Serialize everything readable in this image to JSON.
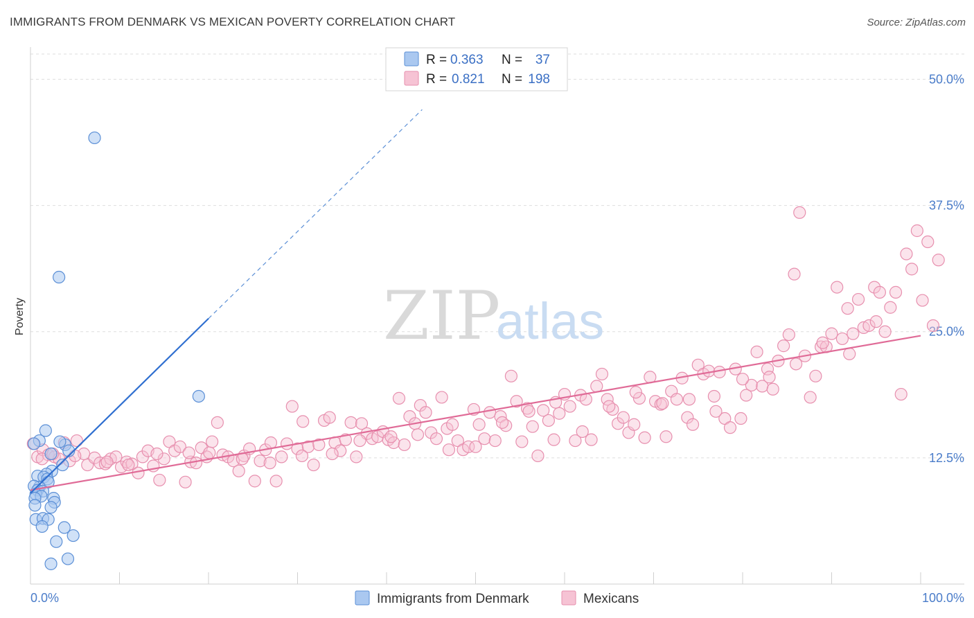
{
  "title": "IMMIGRANTS FROM DENMARK VS MEXICAN POVERTY CORRELATION CHART",
  "source": "Source: ZipAtlas.com",
  "watermark": {
    "zip": "ZIP",
    "atlas": "atlas"
  },
  "colors": {
    "denmark_fill": "#aac8f0",
    "denmark_stroke": "#5b8fd6",
    "denmark_line": "#2f6fd0",
    "mexican_fill": "#f6c3d4",
    "mexican_stroke": "#e78fae",
    "mexican_line": "#e06b97",
    "grid": "#dddddd",
    "tick_label": "#4a7cc9"
  },
  "legend": {
    "rows": [
      {
        "r_label": "R =",
        "r_value": "0.363",
        "n_label": "N =",
        "n_value": "37"
      },
      {
        "r_label": "R =",
        "r_value": "0.821",
        "n_label": "N =",
        "n_value": "198"
      }
    ]
  },
  "chart_data": {
    "type": "scatter",
    "title": "IMMIGRANTS FROM DENMARK VS MEXICAN POVERTY CORRELATION CHART",
    "xlabel": "",
    "ylabel": "Poverty",
    "xlim": [
      0,
      100
    ],
    "ylim": [
      0,
      52.5
    ],
    "x_tick_labels": [
      "0.0%",
      "100.0%"
    ],
    "y_ticks": [
      12.5,
      25.0,
      37.5,
      50.0
    ],
    "y_tick_labels": [
      "12.5%",
      "25.0%",
      "37.5%",
      "50.0%"
    ],
    "grid": true,
    "legend_position": "top-center",
    "series": [
      {
        "name": "Immigrants from Denmark",
        "r": 0.363,
        "n": 37,
        "trend": {
          "x": [
            0.0,
            20.0
          ],
          "y": [
            9.0,
            26.3
          ]
        },
        "trend_extension": {
          "x": [
            20.0,
            44.0
          ],
          "y": [
            26.3,
            47.0
          ]
        },
        "points": [
          [
            7.2,
            44.2
          ],
          [
            3.2,
            30.4
          ],
          [
            18.9,
            18.6
          ],
          [
            1.7,
            15.2
          ],
          [
            1.0,
            14.2
          ],
          [
            0.4,
            13.9
          ],
          [
            3.9,
            13.8
          ],
          [
            3.3,
            14.1
          ],
          [
            4.3,
            13.2
          ],
          [
            3.6,
            11.8
          ],
          [
            2.3,
            12.9
          ],
          [
            2.4,
            11.2
          ],
          [
            1.8,
            10.9
          ],
          [
            0.8,
            10.7
          ],
          [
            1.5,
            10.6
          ],
          [
            1.9,
            10.4
          ],
          [
            2.0,
            10.1
          ],
          [
            1.0,
            9.6
          ],
          [
            0.4,
            9.7
          ],
          [
            0.8,
            9.3
          ],
          [
            1.4,
            9.2
          ],
          [
            0.6,
            8.9
          ],
          [
            1.2,
            8.7
          ],
          [
            0.5,
            8.5
          ],
          [
            2.6,
            8.5
          ],
          [
            2.7,
            8.1
          ],
          [
            2.3,
            7.6
          ],
          [
            0.5,
            7.8
          ],
          [
            0.6,
            6.4
          ],
          [
            1.4,
            6.5
          ],
          [
            2.0,
            6.4
          ],
          [
            1.3,
            5.7
          ],
          [
            3.8,
            5.6
          ],
          [
            4.8,
            4.8
          ],
          [
            2.9,
            4.2
          ],
          [
            4.2,
            2.5
          ],
          [
            2.3,
            2.0
          ]
        ]
      },
      {
        "name": "Mexicans",
        "r": 0.821,
        "n": 198,
        "trend": {
          "x": [
            0.0,
            100.0
          ],
          "y": [
            9.3,
            24.6
          ]
        },
        "points": [
          [
            0.3,
            13.9
          ],
          [
            0.8,
            12.6
          ],
          [
            1.4,
            13.3
          ],
          [
            2.0,
            12.8
          ],
          [
            2.7,
            12.6
          ],
          [
            3.2,
            12.4
          ],
          [
            3.8,
            14.0
          ],
          [
            4.4,
            12.2
          ],
          [
            5.2,
            14.2
          ],
          [
            6.0,
            12.9
          ],
          [
            6.4,
            11.8
          ],
          [
            7.2,
            12.5
          ],
          [
            7.8,
            12.0
          ],
          [
            8.4,
            11.9
          ],
          [
            9.0,
            12.4
          ],
          [
            9.6,
            12.6
          ],
          [
            10.2,
            11.6
          ],
          [
            10.8,
            12.1
          ],
          [
            11.4,
            11.9
          ],
          [
            12.1,
            11.0
          ],
          [
            12.6,
            12.6
          ],
          [
            13.2,
            13.2
          ],
          [
            13.8,
            11.7
          ],
          [
            14.5,
            10.3
          ],
          [
            15.0,
            12.4
          ],
          [
            15.6,
            14.1
          ],
          [
            16.2,
            13.2
          ],
          [
            16.8,
            13.6
          ],
          [
            17.4,
            10.1
          ],
          [
            18.0,
            12.1
          ],
          [
            18.6,
            12.0
          ],
          [
            19.2,
            13.5
          ],
          [
            19.8,
            12.6
          ],
          [
            20.4,
            14.1
          ],
          [
            21.0,
            16.0
          ],
          [
            21.6,
            12.8
          ],
          [
            22.2,
            12.6
          ],
          [
            22.8,
            12.2
          ],
          [
            23.4,
            11.2
          ],
          [
            24.0,
            12.7
          ],
          [
            24.6,
            13.4
          ],
          [
            25.2,
            10.2
          ],
          [
            25.8,
            12.2
          ],
          [
            26.4,
            13.3
          ],
          [
            27.0,
            14.0
          ],
          [
            27.6,
            10.2
          ],
          [
            28.2,
            12.6
          ],
          [
            28.8,
            13.9
          ],
          [
            29.4,
            17.6
          ],
          [
            30.0,
            13.4
          ],
          [
            30.6,
            16.1
          ],
          [
            31.2,
            13.6
          ],
          [
            31.8,
            11.8
          ],
          [
            32.4,
            13.8
          ],
          [
            33.0,
            16.2
          ],
          [
            33.6,
            16.5
          ],
          [
            34.2,
            14.0
          ],
          [
            34.8,
            13.2
          ],
          [
            35.4,
            14.3
          ],
          [
            36.0,
            16.0
          ],
          [
            36.6,
            12.6
          ],
          [
            37.2,
            15.9
          ],
          [
            37.8,
            14.9
          ],
          [
            38.4,
            14.4
          ],
          [
            39.0,
            14.6
          ],
          [
            39.6,
            15.1
          ],
          [
            40.2,
            14.3
          ],
          [
            40.8,
            14.0
          ],
          [
            41.4,
            18.4
          ],
          [
            42.0,
            13.8
          ],
          [
            42.6,
            16.6
          ],
          [
            43.2,
            15.9
          ],
          [
            43.8,
            17.7
          ],
          [
            44.4,
            17.0
          ],
          [
            45.0,
            15.0
          ],
          [
            45.6,
            14.4
          ],
          [
            46.2,
            18.5
          ],
          [
            46.8,
            15.4
          ],
          [
            47.4,
            15.8
          ],
          [
            48.0,
            14.2
          ],
          [
            48.6,
            13.3
          ],
          [
            49.2,
            13.6
          ],
          [
            49.8,
            17.3
          ],
          [
            50.4,
            15.8
          ],
          [
            51.0,
            14.4
          ],
          [
            51.6,
            17.0
          ],
          [
            52.2,
            14.2
          ],
          [
            52.8,
            16.6
          ],
          [
            53.4,
            15.7
          ],
          [
            54.0,
            20.6
          ],
          [
            54.6,
            18.1
          ],
          [
            55.2,
            14.1
          ],
          [
            55.8,
            17.4
          ],
          [
            56.4,
            15.6
          ],
          [
            57.0,
            12.7
          ],
          [
            57.6,
            17.2
          ],
          [
            58.2,
            16.2
          ],
          [
            58.8,
            14.3
          ],
          [
            59.4,
            16.9
          ],
          [
            60.0,
            18.8
          ],
          [
            60.6,
            17.6
          ],
          [
            61.2,
            14.2
          ],
          [
            61.8,
            18.7
          ],
          [
            62.4,
            18.3
          ],
          [
            63.0,
            14.3
          ],
          [
            63.6,
            19.6
          ],
          [
            64.2,
            20.8
          ],
          [
            64.8,
            18.3
          ],
          [
            65.4,
            17.3
          ],
          [
            66.0,
            15.9
          ],
          [
            66.6,
            16.5
          ],
          [
            67.2,
            15.0
          ],
          [
            67.8,
            15.8
          ],
          [
            68.4,
            18.4
          ],
          [
            69.0,
            14.5
          ],
          [
            69.6,
            20.5
          ],
          [
            70.2,
            18.1
          ],
          [
            70.8,
            17.8
          ],
          [
            71.4,
            14.6
          ],
          [
            72.0,
            19.1
          ],
          [
            72.6,
            18.3
          ],
          [
            73.2,
            20.4
          ],
          [
            73.8,
            16.5
          ],
          [
            74.4,
            15.8
          ],
          [
            75.0,
            21.7
          ],
          [
            75.6,
            20.8
          ],
          [
            76.2,
            21.1
          ],
          [
            76.8,
            18.6
          ],
          [
            77.4,
            21.0
          ],
          [
            78.0,
            16.4
          ],
          [
            78.6,
            15.5
          ],
          [
            79.2,
            21.3
          ],
          [
            79.8,
            16.4
          ],
          [
            80.4,
            18.7
          ],
          [
            81.0,
            19.7
          ],
          [
            81.6,
            23.0
          ],
          [
            82.2,
            19.6
          ],
          [
            82.8,
            21.3
          ],
          [
            83.4,
            19.3
          ],
          [
            84.0,
            22.1
          ],
          [
            84.6,
            23.6
          ],
          [
            85.2,
            24.7
          ],
          [
            85.8,
            30.7
          ],
          [
            86.4,
            36.8
          ],
          [
            87.0,
            22.6
          ],
          [
            87.6,
            18.5
          ],
          [
            88.2,
            20.6
          ],
          [
            88.8,
            23.5
          ],
          [
            89.4,
            23.5
          ],
          [
            90.0,
            24.8
          ],
          [
            90.6,
            29.4
          ],
          [
            91.2,
            24.3
          ],
          [
            91.8,
            27.3
          ],
          [
            92.4,
            24.8
          ],
          [
            93.0,
            28.2
          ],
          [
            93.6,
            25.4
          ],
          [
            94.2,
            25.6
          ],
          [
            94.8,
            29.4
          ],
          [
            95.4,
            28.9
          ],
          [
            96.0,
            25.0
          ],
          [
            96.6,
            27.4
          ],
          [
            97.2,
            28.9
          ],
          [
            97.8,
            18.8
          ],
          [
            98.4,
            32.7
          ],
          [
            99.0,
            31.2
          ],
          [
            99.6,
            35.0
          ],
          [
            100.2,
            28.1
          ],
          [
            100.8,
            33.9
          ],
          [
            101.4,
            25.6
          ],
          [
            102.0,
            32.1
          ],
          [
            1.3,
            12.4
          ],
          [
            2.5,
            12.9
          ],
          [
            5.0,
            12.7
          ],
          [
            8.6,
            12.1
          ],
          [
            11.0,
            11.8
          ],
          [
            14.2,
            12.9
          ],
          [
            17.8,
            13.0
          ],
          [
            20.1,
            13.0
          ],
          [
            23.8,
            12.4
          ],
          [
            26.9,
            12.0
          ],
          [
            30.5,
            12.7
          ],
          [
            33.9,
            12.9
          ],
          [
            37.0,
            14.2
          ],
          [
            40.5,
            14.6
          ],
          [
            43.5,
            14.8
          ],
          [
            47.0,
            13.3
          ],
          [
            50.0,
            13.6
          ],
          [
            53.0,
            16.0
          ],
          [
            56.0,
            17.1
          ],
          [
            59.0,
            18.0
          ],
          [
            62.0,
            15.1
          ],
          [
            65.0,
            17.6
          ],
          [
            68.0,
            19.0
          ],
          [
            71.0,
            17.9
          ],
          [
            74.0,
            18.3
          ],
          [
            77.0,
            17.1
          ],
          [
            80.0,
            20.3
          ],
          [
            83.0,
            20.5
          ],
          [
            86.0,
            21.8
          ],
          [
            89.0,
            23.9
          ],
          [
            92.0,
            22.8
          ],
          [
            95.0,
            26.0
          ]
        ]
      }
    ]
  },
  "bottom_legend": [
    "Immigrants from Denmark",
    "Mexicans"
  ]
}
